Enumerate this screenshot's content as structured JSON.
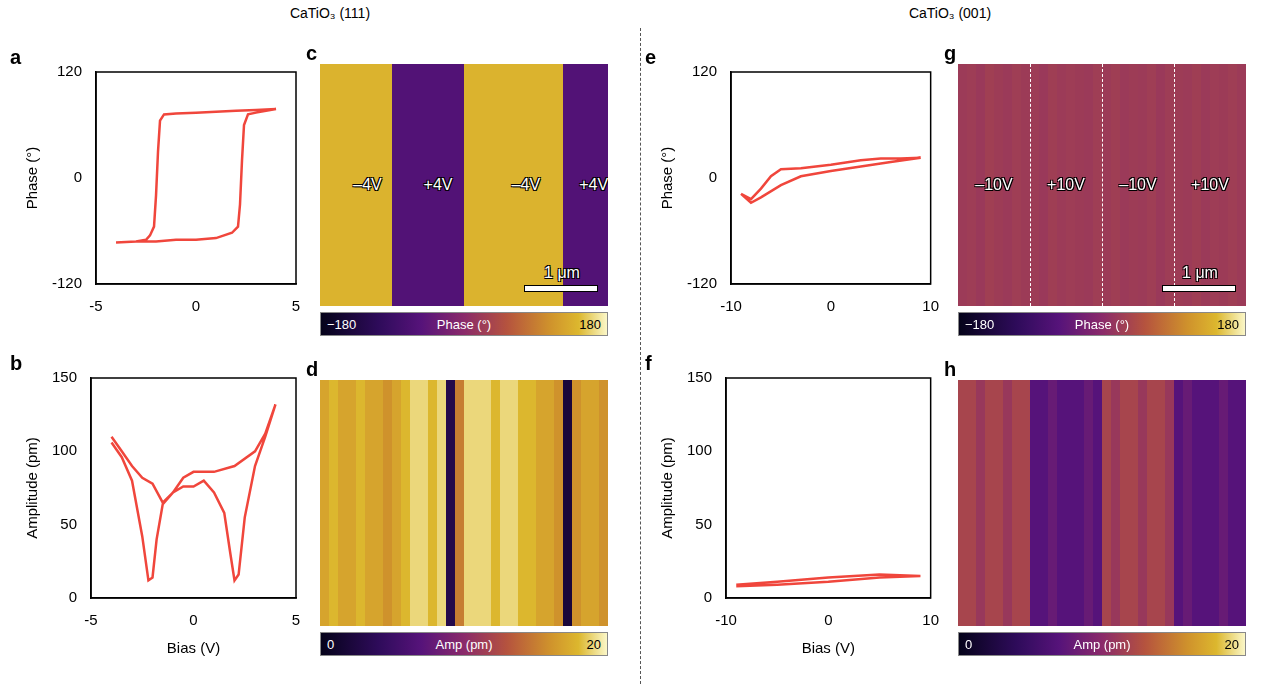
{
  "group_titles": [
    "CaTiO₃ (111)",
    "CaTiO₃ (001)"
  ],
  "chart_data": [
    {
      "panel": "a",
      "type": "line",
      "color": "#f0463c",
      "grid": false,
      "y_label": "Phase (°)",
      "xlim": [
        -5,
        5
      ],
      "xticks": [
        -5,
        0,
        5
      ],
      "ylim": [
        -120,
        120
      ],
      "yticks": [
        -120,
        0,
        120
      ],
      "x": [
        -4,
        -3,
        -2,
        -1,
        0,
        1,
        1.8,
        2.1,
        2.2,
        2.3,
        2.4,
        2.6,
        3,
        3.5,
        4,
        3,
        2,
        1,
        0,
        -1,
        -1.6,
        -1.8,
        -1.9,
        -2.0,
        -2.1,
        -2.3,
        -2.5,
        -3,
        -4
      ],
      "values": [
        -73,
        -72,
        -72,
        -70,
        -70,
        -68,
        -62,
        -55,
        -30,
        20,
        60,
        72,
        74,
        76,
        78,
        77,
        76,
        75,
        74,
        73,
        72,
        65,
        30,
        -20,
        -55,
        -65,
        -70,
        -72,
        -73
      ]
    },
    {
      "panel": "b",
      "type": "line",
      "color": "#f0463c",
      "grid": false,
      "y_label": "Amplitude (pm)",
      "x_label": "Bias (V)",
      "xlim": [
        -5,
        5
      ],
      "xticks": [
        -5,
        0,
        5
      ],
      "ylim": [
        0,
        150
      ],
      "yticks": [
        0,
        50,
        100,
        150
      ],
      "x": [
        -4,
        -3.5,
        -3,
        -2.5,
        -2,
        -1.5,
        -1,
        -0.5,
        0,
        0.5,
        1,
        1.5,
        1.8,
        2,
        2.2,
        2.5,
        3,
        3.5,
        4,
        3.5,
        3,
        2,
        1,
        0,
        -0.5,
        -1,
        -1.5,
        -1.8,
        -2,
        -2.2,
        -2.5,
        -3,
        -3.5,
        -4
      ],
      "values": [
        110,
        100,
        90,
        82,
        78,
        65,
        72,
        76,
        76,
        80,
        72,
        58,
        30,
        12,
        16,
        55,
        90,
        110,
        132,
        112,
        100,
        90,
        86,
        86,
        82,
        72,
        64,
        40,
        14,
        12,
        42,
        80,
        96,
        106
      ]
    },
    {
      "panel": "c",
      "type": "heatmap",
      "x_range": [
        0,
        4
      ],
      "cells": [
        [
          140,
          140,
          140,
          140,
          140,
          140,
          140,
          140,
          -60,
          -60,
          -60,
          -60,
          -60,
          -60,
          -60,
          -60,
          140,
          140,
          140,
          140,
          140,
          140,
          140,
          140,
          140,
          140,
          140,
          -60,
          -60,
          -60,
          -60,
          -60
        ]
      ],
      "clim": [
        -180,
        180
      ],
      "cticks": [
        -180,
        180
      ],
      "colorbar_title": "Phase (°)",
      "stripe_labels": [
        {
          "x": 0.66,
          "text": "–4V"
        },
        {
          "x": 1.64,
          "text": "+4V"
        },
        {
          "x": 2.86,
          "text": "–4V"
        },
        {
          "x": 3.8,
          "text": "+4V"
        }
      ],
      "scale_bar": {
        "length": 1,
        "label": "1 μm"
      }
    },
    {
      "panel": "d",
      "type": "heatmap",
      "x_range": [
        0,
        4
      ],
      "cells": [
        [
          17,
          18,
          17,
          17,
          18,
          17,
          17,
          16,
          17,
          18,
          19,
          19,
          18,
          19,
          3,
          15,
          19,
          19,
          19,
          18,
          19,
          19,
          18,
          18,
          17,
          17,
          16,
          2,
          16,
          17,
          17,
          16
        ]
      ],
      "clim": [
        0,
        20
      ],
      "cticks": [
        0,
        20
      ],
      "colorbar_title": "Amp (pm)"
    },
    {
      "panel": "e",
      "type": "line",
      "color": "#f0463c",
      "grid": false,
      "y_label": "Phase (°)",
      "xlim": [
        -10,
        10
      ],
      "xticks": [
        -10,
        0,
        10
      ],
      "ylim": [
        -120,
        120
      ],
      "yticks": [
        -120,
        0,
        120
      ],
      "x": [
        -9,
        -8,
        -7,
        -5,
        -3,
        0,
        3,
        6,
        9,
        7,
        5,
        3,
        0,
        -3,
        -5,
        -6,
        -7,
        -8,
        -9
      ],
      "values": [
        -18,
        -28,
        -22,
        -8,
        2,
        8,
        13,
        18,
        23,
        22,
        22,
        20,
        15,
        11,
        10,
        2,
        -12,
        -24,
        -18
      ]
    },
    {
      "panel": "f",
      "type": "line",
      "color": "#f0463c",
      "grid": false,
      "y_label": "Amplitude (pm)",
      "x_label": "Bias (V)",
      "xlim": [
        -10,
        10
      ],
      "xticks": [
        -10,
        0,
        10
      ],
      "ylim": [
        0,
        150
      ],
      "yticks": [
        0,
        50,
        100,
        150
      ],
      "x": [
        -9,
        -5,
        0,
        5,
        9,
        5,
        0,
        -5,
        -9
      ],
      "values": [
        8,
        9,
        11,
        14,
        15,
        16,
        14,
        11,
        9
      ]
    },
    {
      "panel": "g",
      "type": "heatmap",
      "x_range": [
        0,
        4
      ],
      "cells": [
        [
          22,
          25,
          20,
          28,
          24,
          21,
          26,
          23,
          24,
          20,
          27,
          22,
          25,
          23,
          21,
          26,
          23,
          27,
          21,
          24,
          22,
          26,
          20,
          25,
          24,
          22,
          27,
          21,
          25,
          23,
          26,
          22
        ]
      ],
      "clim": [
        -180,
        180
      ],
      "cticks": [
        -180,
        180
      ],
      "colorbar_title": "Phase (°)",
      "stripe_labels": [
        {
          "x": 0.5,
          "text": "–10V"
        },
        {
          "x": 1.5,
          "text": "+10V"
        },
        {
          "x": 2.5,
          "text": "–10V"
        },
        {
          "x": 3.5,
          "text": "+10V"
        }
      ],
      "boundaries": [
        1,
        2,
        3
      ],
      "scale_bar": {
        "length": 1,
        "label": "1 μm"
      }
    },
    {
      "panel": "h",
      "type": "heatmap",
      "x_range": [
        0,
        4
      ],
      "cells": [
        [
          12,
          12,
          11,
          12,
          12,
          11,
          12,
          12,
          7,
          7,
          8,
          7,
          7,
          7,
          8,
          7,
          12,
          11,
          12,
          12,
          11,
          12,
          12,
          11,
          7,
          8,
          7,
          7,
          7,
          8,
          7,
          7
        ]
      ],
      "clim": [
        0,
        20
      ],
      "cticks": [
        0,
        20
      ],
      "colorbar_title": "Amp (pm)"
    }
  ]
}
